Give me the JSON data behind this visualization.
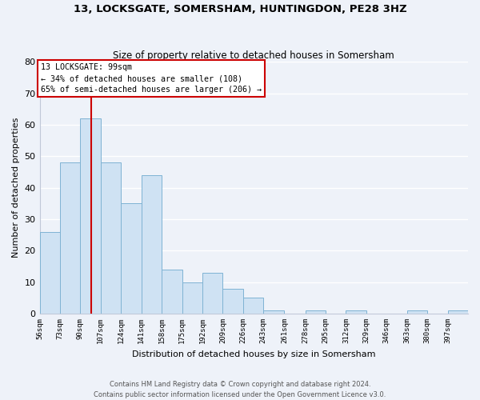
{
  "title": "13, LOCKSGATE, SOMERSHAM, HUNTINGDON, PE28 3HZ",
  "subtitle": "Size of property relative to detached houses in Somersham",
  "xlabel": "Distribution of detached houses by size in Somersham",
  "ylabel": "Number of detached properties",
  "bar_labels": [
    "56sqm",
    "73sqm",
    "90sqm",
    "107sqm",
    "124sqm",
    "141sqm",
    "158sqm",
    "175sqm",
    "192sqm",
    "209sqm",
    "226sqm",
    "243sqm",
    "261sqm",
    "278sqm",
    "295sqm",
    "312sqm",
    "329sqm",
    "346sqm",
    "363sqm",
    "380sqm",
    "397sqm"
  ],
  "bar_values": [
    26,
    48,
    62,
    48,
    35,
    44,
    14,
    10,
    13,
    8,
    5,
    1,
    0,
    1,
    0,
    1,
    0,
    0,
    1,
    0,
    1
  ],
  "bar_color": "#cfe2f3",
  "bar_edge_color": "#7fb3d3",
  "redline_x": 99,
  "annotation_title": "13 LOCKSGATE: 99sqm",
  "annotation_line1": "← 34% of detached houses are smaller (108)",
  "annotation_line2": "65% of semi-detached houses are larger (206) →",
  "annotation_box_color": "#ffffff",
  "annotation_box_edge": "#cc0000",
  "footer_line1": "Contains HM Land Registry data © Crown copyright and database right 2024.",
  "footer_line2": "Contains public sector information licensed under the Open Government Licence v3.0.",
  "ylim": [
    0,
    80
  ],
  "yticks": [
    0,
    10,
    20,
    30,
    40,
    50,
    60,
    70,
    80
  ],
  "left_edges": [
    56,
    73,
    90,
    107,
    124,
    141,
    158,
    175,
    192,
    209,
    226,
    243,
    261,
    278,
    295,
    312,
    329,
    346,
    363,
    380,
    397
  ],
  "bin_width": 17,
  "bg_color": "#eef2f9",
  "grid_color": "#ffffff",
  "spine_color": "#c0c8d8"
}
